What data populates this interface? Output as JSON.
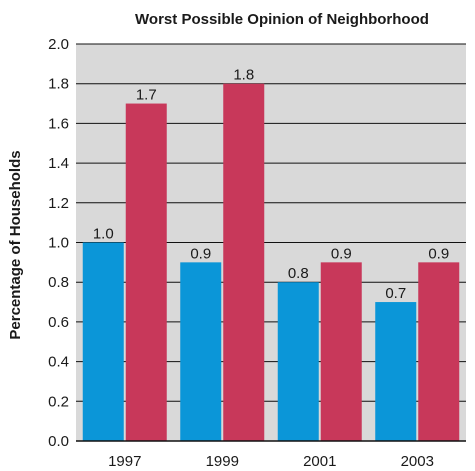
{
  "chart_data": {
    "type": "bar",
    "title": "Worst Possible Opinion of Neighborhood",
    "xlabel": "",
    "ylabel": "Percentage of Households",
    "categories": [
      "1997",
      "1999",
      "2001",
      "2003"
    ],
    "ylim": [
      0,
      2.0
    ],
    "yticks": [
      "0.0",
      "0.2",
      "0.4",
      "0.6",
      "0.8",
      "1.0",
      "1.2",
      "1.4",
      "1.6",
      "1.8",
      "2.0"
    ],
    "grid": true,
    "legend": "none",
    "series": [
      {
        "values": [
          1.0,
          0.9,
          0.8,
          0.7
        ],
        "labels": [
          "1.0",
          "0.9",
          "0.8",
          "0.7"
        ],
        "color": "#0b96d8"
      },
      {
        "values": [
          1.7,
          1.8,
          0.9,
          0.9
        ],
        "labels": [
          "1.7",
          "1.8",
          "0.9",
          "0.9"
        ],
        "color": "#c8385a"
      }
    ],
    "colors": {
      "plot_background": "#d9d9d9",
      "gridline": "#111111"
    }
  }
}
